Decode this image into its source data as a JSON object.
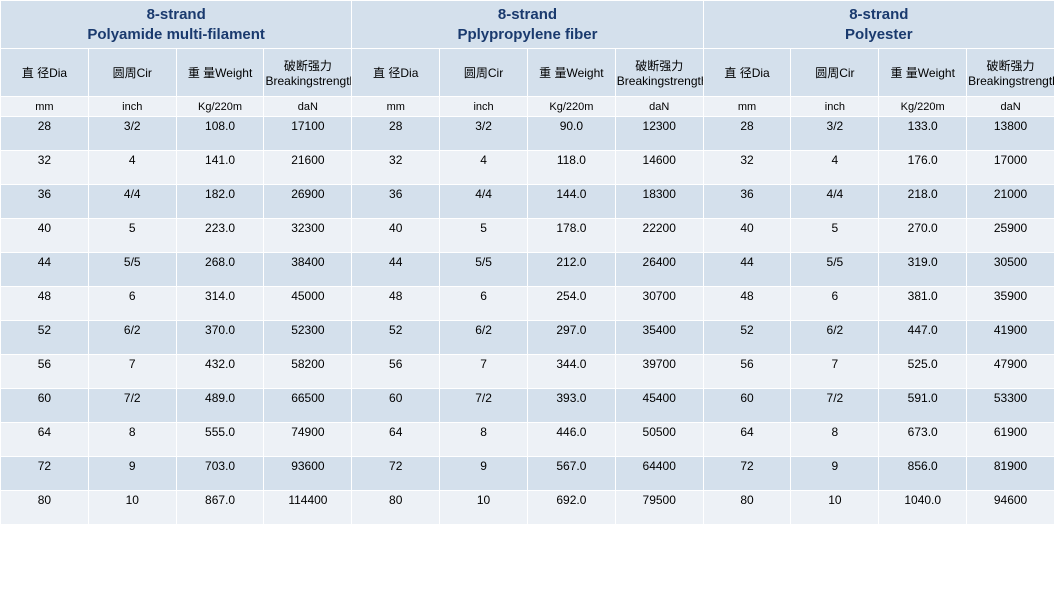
{
  "colors": {
    "header_bg": "#d4e0ec",
    "row_odd_bg": "#d4e0ec",
    "row_even_bg": "#edf1f6",
    "border": "#ffffff",
    "header_text": "#1a3a6e",
    "body_text": "#000000"
  },
  "typography": {
    "header_fontsize_pt": 15,
    "header_fontweight": "bold",
    "colheader_fontsize_pt": 12,
    "body_fontsize_pt": 12,
    "font_family": "Arial, sans-serif"
  },
  "structure": {
    "type": "table",
    "sections": 3,
    "cols_per_section": 4,
    "data_rows": 12
  },
  "sections": [
    {
      "title_line1": "8-strand",
      "title_line2": "Polyamide multi-filament"
    },
    {
      "title_line1": "8-strand",
      "title_line2": "Pplypropylene fiber"
    },
    {
      "title_line1": "8-strand",
      "title_line2": "Polyester"
    }
  ],
  "col_headers": [
    "直 径Dia",
    "圆周Cir",
    "重 量Weight",
    "破断强力Breakingstrength",
    "直 径Dia",
    "圆周Cir",
    "重 量Weight",
    "破断强力Breakingstrength",
    "直 径Dia",
    "圆周Cir",
    "重 量Weight",
    "破断强力Breakingstrength"
  ],
  "units": [
    "mm",
    "inch",
    "Kg/220m",
    "daN",
    "mm",
    "inch",
    "Kg/220m",
    "daN",
    "mm",
    "inch",
    "Kg/220m",
    "daN"
  ],
  "rows": [
    [
      "28",
      "3/2",
      "108.0",
      "17100",
      "28",
      "3/2",
      "90.0",
      "12300",
      "28",
      "3/2",
      "133.0",
      "13800"
    ],
    [
      "32",
      "4",
      "141.0",
      "21600",
      "32",
      "4",
      "118.0",
      "14600",
      "32",
      "4",
      "176.0",
      "17000"
    ],
    [
      "36",
      "4/4",
      "182.0",
      "26900",
      "36",
      "4/4",
      "144.0",
      "18300",
      "36",
      "4/4",
      "218.0",
      "21000"
    ],
    [
      "40",
      "5",
      "223.0",
      "32300",
      "40",
      "5",
      "178.0",
      "22200",
      "40",
      "5",
      "270.0",
      "25900"
    ],
    [
      "44",
      "5/5",
      "268.0",
      "38400",
      "44",
      "5/5",
      "212.0",
      "26400",
      "44",
      "5/5",
      "319.0",
      "30500"
    ],
    [
      "48",
      "6",
      "314.0",
      "45000",
      "48",
      "6",
      "254.0",
      "30700",
      "48",
      "6",
      "381.0",
      "35900"
    ],
    [
      "52",
      "6/2",
      "370.0",
      "52300",
      "52",
      "6/2",
      "297.0",
      "35400",
      "52",
      "6/2",
      "447.0",
      "41900"
    ],
    [
      "56",
      "7",
      "432.0",
      "58200",
      "56",
      "7",
      "344.0",
      "39700",
      "56",
      "7",
      "525.0",
      "47900"
    ],
    [
      "60",
      "7/2",
      "489.0",
      "66500",
      "60",
      "7/2",
      "393.0",
      "45400",
      "60",
      "7/2",
      "591.0",
      "53300"
    ],
    [
      "64",
      "8",
      "555.0",
      "74900",
      "64",
      "8",
      "446.0",
      "50500",
      "64",
      "8",
      "673.0",
      "61900"
    ],
    [
      "72",
      "9",
      "703.0",
      "93600",
      "72",
      "9",
      "567.0",
      "64400",
      "72",
      "9",
      "856.0",
      "81900"
    ],
    [
      "80",
      "10",
      "867.0",
      "114400",
      "80",
      "10",
      "692.0",
      "79500",
      "80",
      "10",
      "1040.0",
      "94600"
    ]
  ]
}
